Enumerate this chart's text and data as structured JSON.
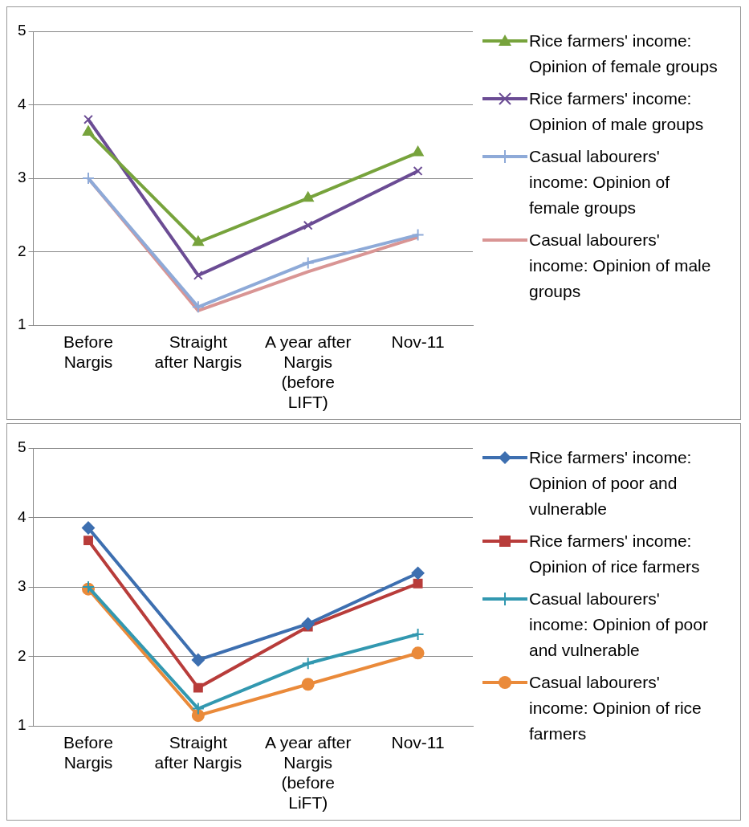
{
  "chart_data": [
    {
      "type": "line",
      "categories": [
        "Before Nargis",
        "Straight after Nargis",
        "A year after Nargis (before LIFT)",
        "Nov-11"
      ],
      "ylim": [
        1,
        5
      ],
      "yticks": [
        1,
        2,
        3,
        4,
        5
      ],
      "grid": "y",
      "legend": "right",
      "series": [
        {
          "name": "Rice farmers' income: Opinion of female groups",
          "color": "#77a33c",
          "marker": "triangle",
          "values": [
            3.63,
            2.13,
            2.73,
            3.35
          ]
        },
        {
          "name": "Rice farmers' income: Opinion of male groups",
          "color": "#6b4c94",
          "marker": "x",
          "values": [
            3.8,
            1.68,
            2.36,
            3.1
          ]
        },
        {
          "name": "Casual labourers' income: Opinion of female groups",
          "color": "#8eaad8",
          "marker": "cross",
          "values": [
            3.0,
            1.25,
            1.85,
            2.23
          ]
        },
        {
          "name": "Casual labourers' income: Opinion of male groups",
          "color": "#d99594",
          "marker": "none",
          "values": [
            3.0,
            1.2,
            1.73,
            2.2
          ]
        }
      ]
    },
    {
      "type": "line",
      "categories": [
        "Before Nargis",
        "Straight after Nargis",
        "A year after Nargis (before LiFT)",
        "Nov-11"
      ],
      "ylim": [
        1,
        5
      ],
      "yticks": [
        1,
        2,
        3,
        4,
        5
      ],
      "grid": "y",
      "legend": "right",
      "series": [
        {
          "name": "Rice farmers' income: Opinion of poor and vulnerable",
          "color": "#3d6fb0",
          "marker": "diamond",
          "values": [
            3.85,
            1.95,
            2.47,
            3.2
          ]
        },
        {
          "name": "Rice farmers' income: Opinion of rice farmers",
          "color": "#b83c3a",
          "marker": "square",
          "values": [
            3.67,
            1.55,
            2.43,
            3.05
          ]
        },
        {
          "name": "Casual labourers' income: Opinion of poor and vulnerable",
          "color": "#3298b0",
          "marker": "cross",
          "values": [
            3.0,
            1.25,
            1.9,
            2.32
          ]
        },
        {
          "name": "Casual labourers' income: Opinion of rice farmers",
          "color": "#ea8a3a",
          "marker": "circle",
          "values": [
            2.97,
            1.15,
            1.6,
            2.05
          ]
        }
      ]
    }
  ]
}
